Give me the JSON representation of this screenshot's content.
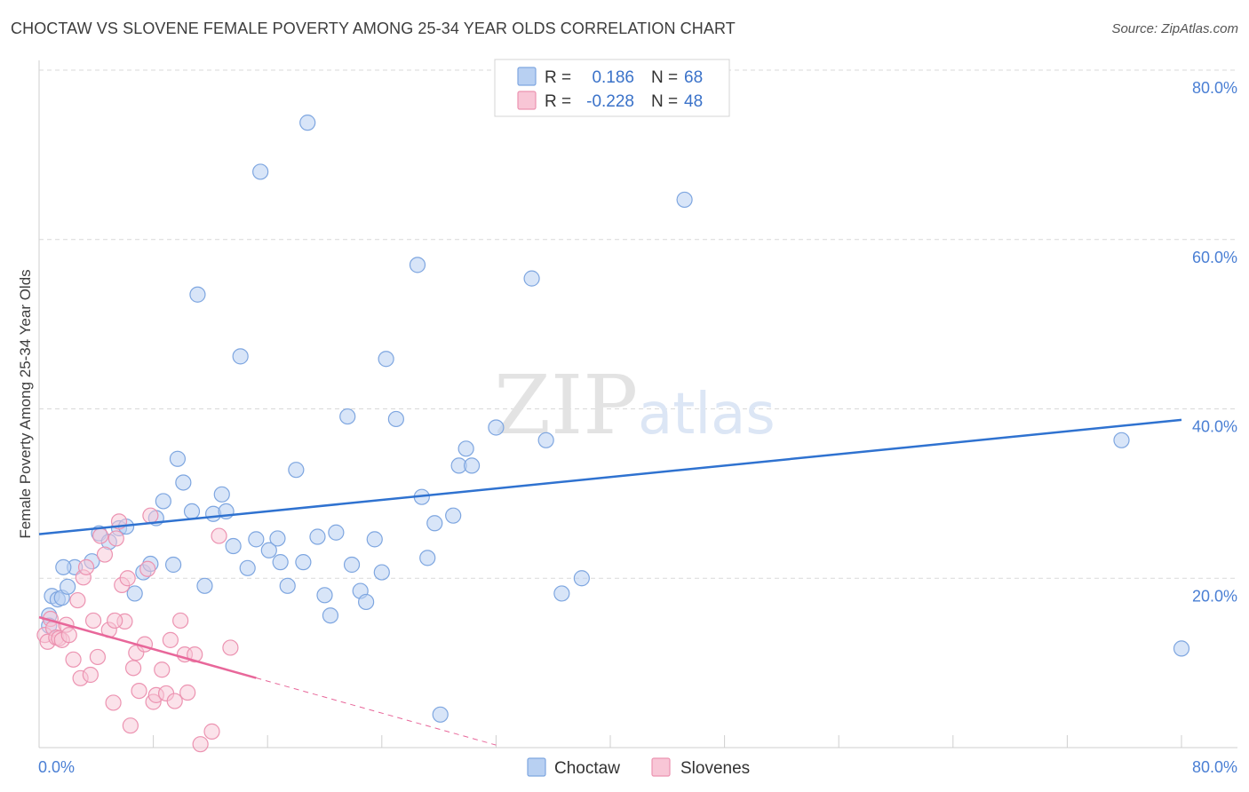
{
  "header": {
    "title": "CHOCTAW VS SLOVENE FEMALE POVERTY AMONG 25-34 YEAR OLDS CORRELATION CHART",
    "source": "Source: ZipAtlas.com"
  },
  "watermark": {
    "zip": "ZIP",
    "atlas": "atlas"
  },
  "legend": {
    "rows": [
      {
        "r_label": "R =",
        "r_value": "0.186",
        "n_label": "N =",
        "n_value": "68"
      },
      {
        "r_label": "R =",
        "r_value": "-0.228",
        "n_label": "N =",
        "n_value": "48"
      }
    ]
  },
  "colors": {
    "choctaw_fill": "#b8d0f2",
    "choctaw_stroke": "#7ea6e0",
    "choctaw_line": "#2f72d0",
    "slovenes_fill": "#f8c6d6",
    "slovenes_stroke": "#ec93b1",
    "slovenes_line": "#e8679a",
    "grid": "#d9d9d9",
    "tick_label": "#4a7fd4"
  },
  "chart_data": {
    "type": "scatter",
    "title": "CHOCTAW VS SLOVENE FEMALE POVERTY AMONG 25-34 YEAR OLDS CORRELATION CHART",
    "xlabel": "",
    "ylabel": "Female Poverty Among 25-34 Year Olds",
    "xlim": [
      0,
      80
    ],
    "ylim": [
      0,
      80
    ],
    "x_tick_labels": [
      "0.0%",
      "80.0%"
    ],
    "y_ticks": [
      20,
      40,
      60,
      80
    ],
    "y_tick_labels": [
      "20.0%",
      "40.0%",
      "60.0%",
      "80.0%"
    ],
    "series": [
      {
        "name": "Choctaw",
        "r": 0.186,
        "n": 68,
        "trend": {
          "x": [
            0,
            80
          ],
          "y": [
            25.2,
            38.7
          ],
          "dashed_from": null
        },
        "points": [
          [
            0.7,
            15.6
          ],
          [
            0.9,
            17.9
          ],
          [
            1.3,
            17.5
          ],
          [
            1.6,
            17.7
          ],
          [
            2.0,
            19.0
          ],
          [
            2.5,
            21.3
          ],
          [
            1.7,
            21.3
          ],
          [
            3.7,
            22.0
          ],
          [
            4.2,
            25.3
          ],
          [
            4.9,
            24.3
          ],
          [
            5.6,
            25.9
          ],
          [
            6.1,
            26.1
          ],
          [
            6.7,
            18.2
          ],
          [
            7.3,
            20.7
          ],
          [
            7.8,
            21.7
          ],
          [
            8.2,
            27.1
          ],
          [
            8.7,
            29.1
          ],
          [
            9.4,
            21.6
          ],
          [
            9.7,
            34.1
          ],
          [
            10.1,
            31.3
          ],
          [
            10.7,
            27.9
          ],
          [
            11.1,
            53.5
          ],
          [
            11.6,
            19.1
          ],
          [
            12.2,
            27.6
          ],
          [
            12.8,
            29.9
          ],
          [
            13.1,
            27.9
          ],
          [
            13.6,
            23.8
          ],
          [
            14.1,
            46.2
          ],
          [
            14.6,
            21.2
          ],
          [
            15.2,
            24.6
          ],
          [
            15.5,
            68.0
          ],
          [
            16.1,
            23.3
          ],
          [
            16.7,
            24.7
          ],
          [
            16.9,
            21.9
          ],
          [
            17.4,
            19.1
          ],
          [
            18.0,
            32.8
          ],
          [
            18.5,
            21.9
          ],
          [
            18.8,
            73.8
          ],
          [
            19.5,
            24.9
          ],
          [
            20.0,
            18.0
          ],
          [
            20.4,
            15.6
          ],
          [
            20.8,
            25.4
          ],
          [
            21.6,
            39.1
          ],
          [
            21.9,
            21.6
          ],
          [
            22.5,
            18.5
          ],
          [
            22.9,
            17.2
          ],
          [
            23.5,
            24.6
          ],
          [
            24.0,
            20.7
          ],
          [
            24.3,
            45.9
          ],
          [
            25.0,
            38.8
          ],
          [
            26.5,
            57.0
          ],
          [
            26.8,
            29.6
          ],
          [
            27.2,
            22.4
          ],
          [
            27.7,
            26.5
          ],
          [
            28.1,
            3.9
          ],
          [
            29.0,
            27.4
          ],
          [
            29.4,
            33.3
          ],
          [
            29.9,
            35.3
          ],
          [
            30.3,
            33.3
          ],
          [
            32.0,
            37.8
          ],
          [
            34.5,
            55.4
          ],
          [
            35.5,
            36.3
          ],
          [
            36.6,
            18.2
          ],
          [
            38.0,
            20.0
          ],
          [
            45.2,
            64.7
          ],
          [
            75.8,
            36.3
          ],
          [
            80.0,
            11.7
          ],
          [
            0.7,
            14.4
          ]
        ]
      },
      {
        "name": "Slovenes",
        "r": -0.228,
        "n": 48,
        "trend": {
          "x": [
            0,
            32
          ],
          "y": [
            15.4,
            0.3
          ],
          "solid_until_x": 15.2
        },
        "points": [
          [
            0.4,
            13.3
          ],
          [
            0.6,
            12.5
          ],
          [
            0.8,
            15.2
          ],
          [
            1.0,
            14.1
          ],
          [
            1.2,
            13.0
          ],
          [
            1.4,
            12.9
          ],
          [
            1.6,
            12.7
          ],
          [
            1.9,
            14.5
          ],
          [
            2.1,
            13.3
          ],
          [
            2.4,
            10.4
          ],
          [
            2.7,
            17.4
          ],
          [
            2.9,
            8.2
          ],
          [
            3.1,
            20.1
          ],
          [
            3.3,
            21.3
          ],
          [
            3.6,
            8.6
          ],
          [
            3.8,
            15.0
          ],
          [
            4.1,
            10.7
          ],
          [
            4.3,
            25.0
          ],
          [
            4.6,
            22.8
          ],
          [
            4.9,
            13.9
          ],
          [
            5.2,
            5.3
          ],
          [
            5.4,
            24.7
          ],
          [
            5.6,
            26.7
          ],
          [
            5.8,
            19.2
          ],
          [
            6.0,
            14.9
          ],
          [
            6.2,
            20.0
          ],
          [
            6.4,
            2.6
          ],
          [
            6.6,
            9.4
          ],
          [
            6.8,
            11.2
          ],
          [
            7.0,
            6.7
          ],
          [
            7.4,
            12.2
          ],
          [
            7.6,
            21.1
          ],
          [
            7.8,
            27.4
          ],
          [
            8.0,
            5.4
          ],
          [
            8.2,
            6.2
          ],
          [
            8.6,
            9.2
          ],
          [
            8.9,
            6.4
          ],
          [
            9.2,
            12.7
          ],
          [
            9.5,
            5.5
          ],
          [
            9.9,
            15.0
          ],
          [
            10.2,
            11.0
          ],
          [
            10.4,
            6.5
          ],
          [
            10.9,
            11.0
          ],
          [
            11.3,
            0.4
          ],
          [
            12.1,
            1.9
          ],
          [
            12.6,
            25.0
          ],
          [
            13.4,
            11.8
          ],
          [
            5.3,
            15.0
          ]
        ]
      }
    ]
  },
  "bottom_legend": {
    "items": [
      "Choctaw",
      "Slovenes"
    ]
  }
}
